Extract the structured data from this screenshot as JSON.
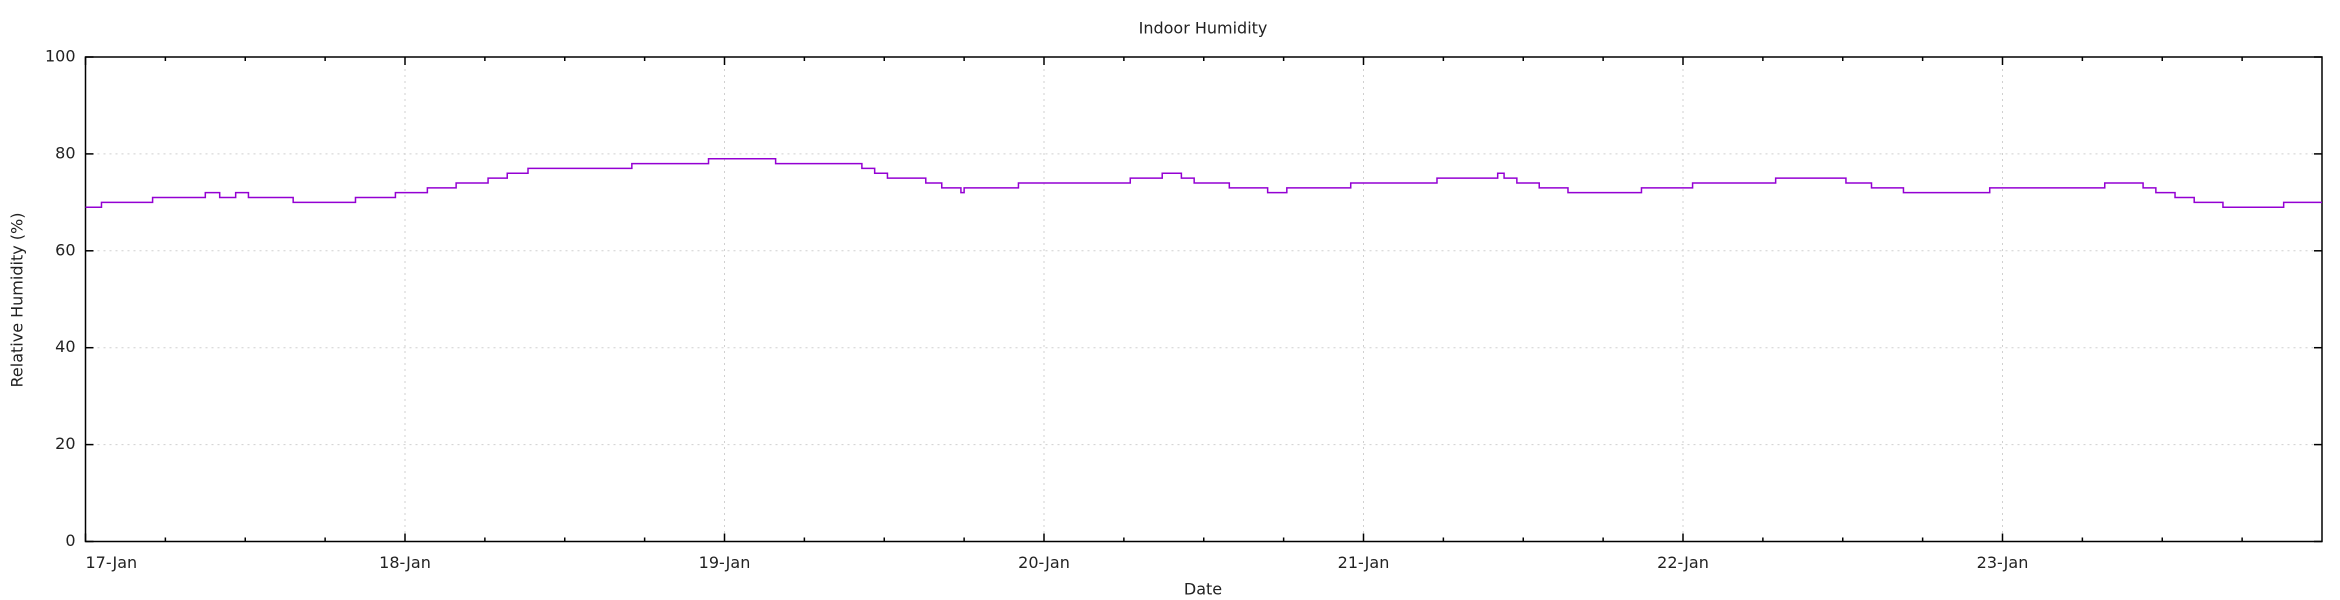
{
  "chart_data": {
    "type": "line",
    "title": "Indoor Humidity",
    "x_label": "Date",
    "y_label": "Relative Humidity (%)",
    "x": [
      0,
      0.05,
      0.21,
      0.375,
      0.42,
      0.47,
      0.51,
      0.65,
      0.845,
      0.97,
      1.07,
      1.16,
      1.26,
      1.32,
      1.385,
      1.71,
      1.95,
      2.16,
      2.43,
      2.47,
      2.51,
      2.63,
      2.68,
      2.74,
      2.75,
      2.92,
      3.27,
      3.37,
      3.43,
      3.47,
      3.58,
      3.7,
      3.76,
      3.96,
      4.23,
      4.42,
      4.44,
      4.48,
      4.55,
      4.64,
      4.87,
      5.03,
      5.29,
      5.51,
      5.59,
      5.69,
      5.96,
      6.32,
      6.44,
      6.48,
      6.54,
      6.6,
      6.69,
      6.88,
      7
    ],
    "series": [
      {
        "name": "Indoor Humidity",
        "color": "#9400d3",
        "values": [
          69,
          70,
          71,
          72,
          71,
          72,
          71,
          70,
          71,
          72,
          73,
          74,
          75,
          76,
          77,
          78,
          79,
          78,
          77,
          76,
          75,
          74,
          73,
          72,
          73,
          74,
          75,
          76,
          75,
          74,
          73,
          72,
          73,
          74,
          75,
          76,
          75,
          74,
          73,
          72,
          73,
          74,
          75,
          74,
          73,
          72,
          73,
          74,
          73,
          72,
          71,
          70,
          69,
          70,
          70
        ]
      }
    ],
    "xlim": [
      0,
      7
    ],
    "xticks": [
      {
        "value": 0,
        "label": "17-Jan"
      },
      {
        "value": 1,
        "label": "18-Jan"
      },
      {
        "value": 2,
        "label": "19-Jan"
      },
      {
        "value": 3,
        "label": "20-Jan"
      },
      {
        "value": 4,
        "label": "21-Jan"
      },
      {
        "value": 5,
        "label": "22-Jan"
      },
      {
        "value": 6,
        "label": "23-Jan"
      }
    ],
    "ylim": [
      0,
      100
    ],
    "yticks": [
      0,
      20,
      40,
      60,
      80,
      100
    ],
    "grid": true
  }
}
